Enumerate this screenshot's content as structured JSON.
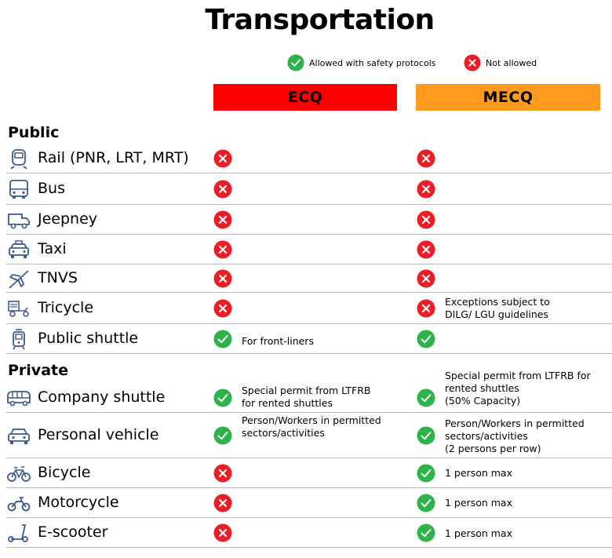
{
  "title": "Transportation",
  "legend": {
    "allowed": "Allowed with safety protocols",
    "not_allowed": "Not allowed"
  },
  "columns": {
    "ecq": "ECQ",
    "mecq": "MECQ"
  },
  "colors": {
    "ecq": "#ff0000",
    "mecq": "#ff9a1f",
    "allowed": "#2db34a",
    "not_allowed": "#ee1c24",
    "icon": "#3d5a8c"
  },
  "sections": {
    "public": "Public",
    "private": "Private"
  },
  "rows": [
    {
      "name": "Rail (PNR, LRT, MRT)",
      "icon": "train-icon",
      "ecq": "not_allowed",
      "ecq_note": "",
      "mecq": "not_allowed",
      "mecq_note": ""
    },
    {
      "name": "Bus",
      "icon": "bus-icon",
      "ecq": "not_allowed",
      "ecq_note": "",
      "mecq": "not_allowed",
      "mecq_note": ""
    },
    {
      "name": "Jeepney",
      "icon": "jeepney-icon",
      "ecq": "not_allowed",
      "ecq_note": "",
      "mecq": "not_allowed",
      "mecq_note": ""
    },
    {
      "name": "Taxi",
      "icon": "taxi-icon",
      "ecq": "not_allowed",
      "ecq_note": "",
      "mecq": "not_allowed",
      "mecq_note": ""
    },
    {
      "name": "TNVS",
      "icon": "airplane-icon",
      "ecq": "not_allowed",
      "ecq_note": "",
      "mecq": "not_allowed",
      "mecq_note": ""
    },
    {
      "name": "Tricycle",
      "icon": "tricycle-icon",
      "ecq": "not_allowed",
      "ecq_note": "",
      "mecq": "not_allowed",
      "mecq_note": "Exceptions subject to\nDILG/ LGU guidelines"
    },
    {
      "name": "Public shuttle",
      "icon": "tram-icon",
      "ecq": "allowed",
      "ecq_note": "For front-liners",
      "mecq": "allowed",
      "mecq_note": ""
    },
    {
      "name": "Company shuttle",
      "icon": "shuttle-icon",
      "ecq": "allowed",
      "ecq_note": "Special permit from LTFRB\nfor rented shuttles",
      "mecq": "allowed",
      "mecq_note": "Special permit from LTFRB for\nrented shuttles\n(50% Capacity)"
    },
    {
      "name": "Personal vehicle",
      "icon": "car-icon",
      "ecq": "allowed",
      "ecq_note": "Person/Workers in permitted\nsectors/activities",
      "mecq": "allowed",
      "mecq_note": "Person/Workers in permitted\nsectors/activities\n(2 persons per row)"
    },
    {
      "name": "Bicycle",
      "icon": "bicycle-icon",
      "ecq": "not_allowed",
      "ecq_note": "",
      "mecq": "allowed",
      "mecq_note": "1 person max"
    },
    {
      "name": "Motorcycle",
      "icon": "motorcycle-icon",
      "ecq": "not_allowed",
      "ecq_note": "",
      "mecq": "allowed",
      "mecq_note": "1 person max"
    },
    {
      "name": "E-scooter",
      "icon": "scooter-icon",
      "ecq": "not_allowed",
      "ecq_note": "",
      "mecq": "allowed",
      "mecq_note": "1 person max"
    }
  ]
}
